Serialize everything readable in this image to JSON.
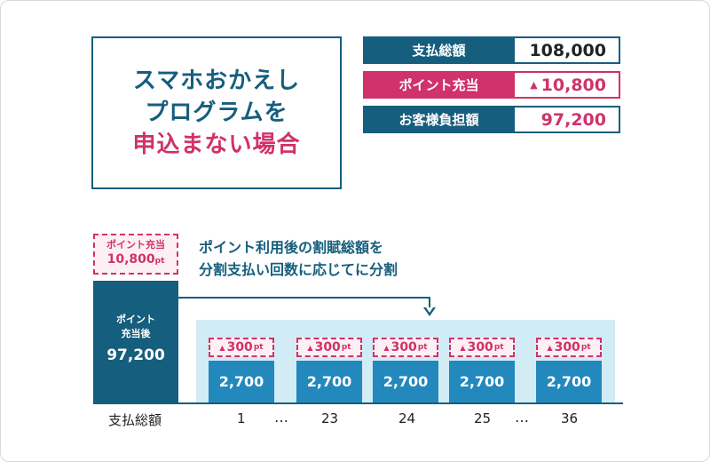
{
  "title": {
    "line1": "スマホおかえし",
    "line2": "プログラムを",
    "line3": "申込まない場合"
  },
  "summary": [
    {
      "label": "支払総額",
      "value": "108,000"
    },
    {
      "label": "ポイント充当",
      "value": "10,800",
      "prefix": "▲"
    },
    {
      "label": "お客様負担額",
      "value": "97,200"
    }
  ],
  "point_total": {
    "label": "ポイント充当",
    "value": "10,800",
    "unit": "pt"
  },
  "after_bar": {
    "label": "ポイント\n充当後",
    "value": "97,200"
  },
  "explanation": {
    "line1": "ポイント利用後の割賦総額を",
    "line2": "分割支払い回数に応じてに分割"
  },
  "months": [
    {
      "number": "1",
      "point": "300",
      "unit": "pt",
      "amount": "2,700"
    },
    {
      "number": "23",
      "point": "300",
      "unit": "pt",
      "amount": "2,700"
    },
    {
      "number": "24",
      "point": "300",
      "unit": "pt",
      "amount": "2,700"
    },
    {
      "number": "25",
      "point": "300",
      "unit": "pt",
      "amount": "2,700"
    },
    {
      "number": "36",
      "point": "300",
      "unit": "pt",
      "amount": "2,700"
    }
  ],
  "axis": {
    "total_label": "支払総額",
    "ellipsis": "…"
  },
  "colors": {
    "navy": "#165e7d",
    "pink": "#d0326b",
    "blue": "#2388bc",
    "light_blue": "#d2ecf6"
  }
}
